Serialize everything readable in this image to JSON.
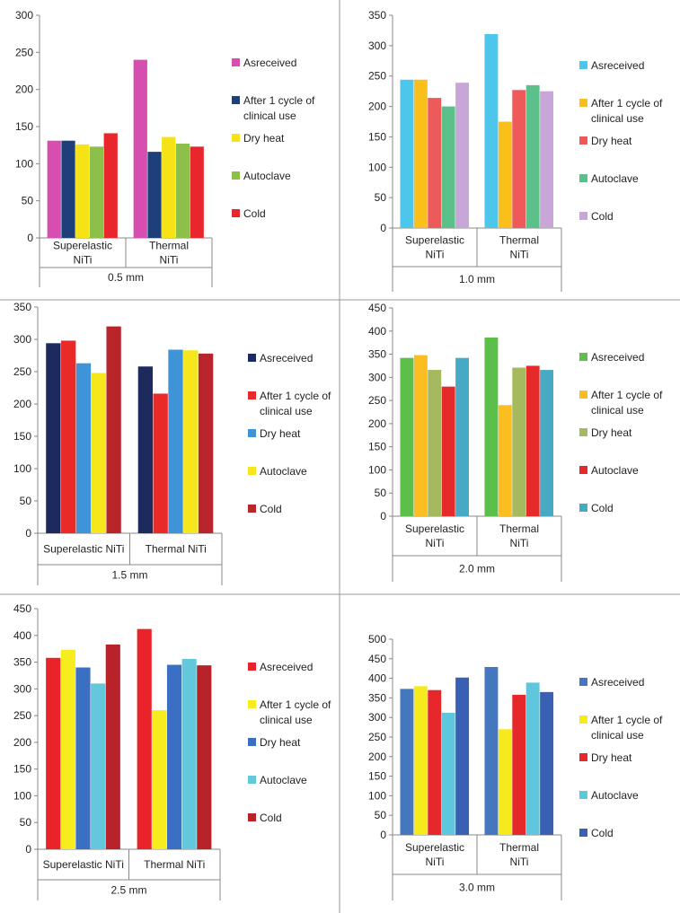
{
  "chart_data": [
    {
      "type": "bar",
      "title": "0.5 mm",
      "categories": [
        "Superelastic NiTi",
        "Thermal NiTi"
      ],
      "ylim": [
        0,
        300
      ],
      "yticks": [
        0,
        50,
        100,
        150,
        200,
        250,
        300
      ],
      "series": [
        {
          "name": "Asreceived",
          "color": "#d64fb0",
          "values": [
            131,
            240
          ]
        },
        {
          "name": "After 1 cycle of clinical use",
          "color": "#1f3f7a",
          "values": [
            131,
            116
          ]
        },
        {
          "name": "Dry heat",
          "color": "#f5e316",
          "values": [
            126,
            136
          ]
        },
        {
          "name": "Autoclave",
          "color": "#8cc04a",
          "values": [
            123,
            127
          ]
        },
        {
          "name": "Cold",
          "color": "#e8262c",
          "values": [
            141,
            123
          ]
        }
      ]
    },
    {
      "type": "bar",
      "title": "1.0 mm",
      "categories": [
        "Superelastic NiTi",
        "Thermal NiTi"
      ],
      "ylim": [
        0,
        350
      ],
      "yticks": [
        0,
        50,
        100,
        150,
        200,
        250,
        300,
        350
      ],
      "series": [
        {
          "name": "Asreceived",
          "color": "#4dc6ec",
          "values": [
            244,
            319
          ]
        },
        {
          "name": "After 1 cycle of clinical use",
          "color": "#fbbf1b",
          "values": [
            244,
            175
          ]
        },
        {
          "name": "Dry heat",
          "color": "#ee5a5a",
          "values": [
            214,
            227
          ]
        },
        {
          "name": "Autoclave",
          "color": "#5cc08a",
          "values": [
            200,
            235
          ]
        },
        {
          "name": "Cold",
          "color": "#c8a6d8",
          "values": [
            239,
            225
          ]
        }
      ]
    },
    {
      "type": "bar",
      "title": "1.5 mm",
      "categories": [
        "Superelastic NiTi",
        "Thermal NiTi"
      ],
      "ylim": [
        0,
        350
      ],
      "yticks": [
        0,
        50,
        100,
        150,
        200,
        250,
        300,
        350
      ],
      "series": [
        {
          "name": "Asreceived",
          "color": "#1c2a5e",
          "values": [
            294,
            258
          ]
        },
        {
          "name": "After 1 cycle of clinical use",
          "color": "#ea2929",
          "values": [
            298,
            216
          ]
        },
        {
          "name": "Dry heat",
          "color": "#3e94d6",
          "values": [
            263,
            284
          ]
        },
        {
          "name": "Autoclave",
          "color": "#f6e61c",
          "values": [
            248,
            283
          ]
        },
        {
          "name": "Cold",
          "color": "#b8262c",
          "values": [
            320,
            278
          ]
        }
      ]
    },
    {
      "type": "bar",
      "title": "2.0 mm",
      "categories": [
        "Superelastic NiTi",
        "Thermal NiTi"
      ],
      "ylim": [
        0,
        450
      ],
      "yticks": [
        0,
        50,
        100,
        150,
        200,
        250,
        300,
        350,
        400,
        450
      ],
      "series": [
        {
          "name": "Asreceived",
          "color": "#5cbf4a",
          "values": [
            342,
            386
          ]
        },
        {
          "name": "After 1 cycle of clinical use",
          "color": "#fbbd1f",
          "values": [
            348,
            240
          ]
        },
        {
          "name": "Dry heat",
          "color": "#a5b95e",
          "values": [
            316,
            321
          ]
        },
        {
          "name": "Autoclave",
          "color": "#e62a2a",
          "values": [
            280,
            325
          ]
        },
        {
          "name": "Cold",
          "color": "#48a9c5",
          "values": [
            342,
            316
          ]
        }
      ]
    },
    {
      "type": "bar",
      "title": "2.5 mm",
      "categories": [
        "Superelastic NiTi",
        "Thermal NiTi"
      ],
      "ylim": [
        0,
        450
      ],
      "yticks": [
        0,
        50,
        100,
        150,
        200,
        250,
        300,
        350,
        400,
        450
      ],
      "series": [
        {
          "name": "Asreceived",
          "color": "#ea2229",
          "values": [
            358,
            412
          ]
        },
        {
          "name": "After 1 cycle of clinical use",
          "color": "#f7ec1d",
          "values": [
            373,
            260
          ]
        },
        {
          "name": "Dry heat",
          "color": "#3a6fc4",
          "values": [
            340,
            345
          ]
        },
        {
          "name": "Autoclave",
          "color": "#64c8dc",
          "values": [
            310,
            356
          ]
        },
        {
          "name": "Cold",
          "color": "#b8232a",
          "values": [
            383,
            344
          ]
        }
      ]
    },
    {
      "type": "bar",
      "title": "3.0 mm",
      "categories": [
        "Superelastic NiTi",
        "Thermal NiTi"
      ],
      "ylim": [
        0,
        500
      ],
      "yticks": [
        0,
        50,
        100,
        150,
        200,
        250,
        300,
        350,
        400,
        450,
        500
      ],
      "series": [
        {
          "name": "Asreceived",
          "color": "#4577be",
          "values": [
            373,
            429
          ]
        },
        {
          "name": "After 1 cycle of clinical use",
          "color": "#f7ea1c",
          "values": [
            380,
            270
          ]
        },
        {
          "name": "Dry heat",
          "color": "#e6282a",
          "values": [
            370,
            358
          ]
        },
        {
          "name": "Autoclave",
          "color": "#5ec6dd",
          "values": [
            312,
            389
          ]
        },
        {
          "name": "Cold",
          "color": "#3a60b4",
          "values": [
            402,
            365
          ]
        }
      ]
    }
  ]
}
